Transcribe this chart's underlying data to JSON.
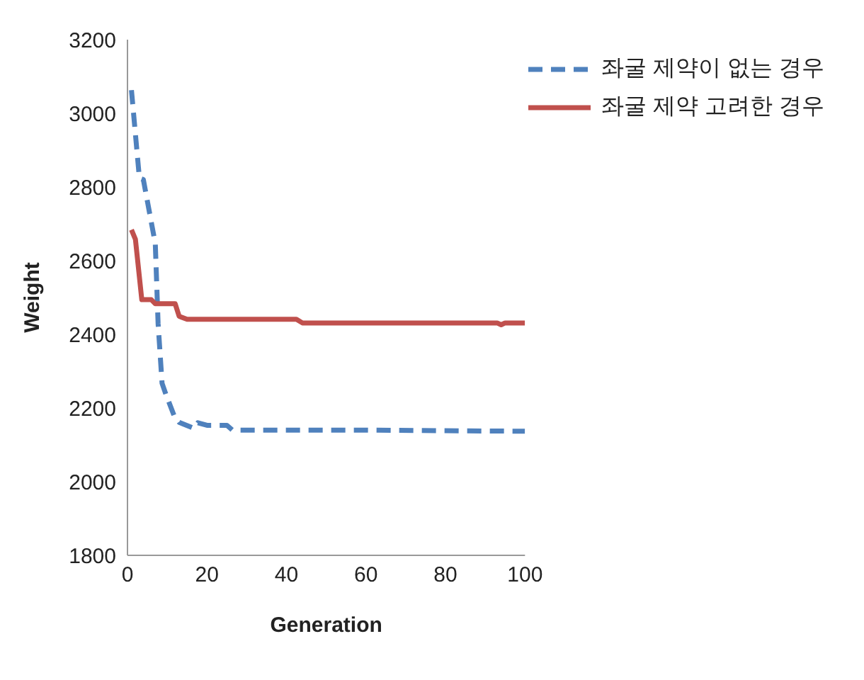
{
  "chart_data": {
    "type": "line",
    "xlabel": "Generation",
    "ylabel": "Weight",
    "xlim": [
      0,
      100
    ],
    "xticks": [
      0,
      20,
      40,
      60,
      80,
      100
    ],
    "ylim": [
      1800,
      3200
    ],
    "yticks": [
      1800,
      2000,
      2200,
      2400,
      2600,
      2800,
      3000,
      3200
    ],
    "grid": false,
    "legend": "top right",
    "marker": "none",
    "series": [
      {
        "name": "좌굴 제약이 없는 경우",
        "color": "#4f81bd",
        "line_style": "dashed",
        "x": [
          1,
          3,
          4,
          7,
          7.7,
          8.7,
          9.7,
          11.7,
          13,
          16.7,
          17.7,
          20,
          25,
          26.4,
          40,
          60,
          83.7,
          100
        ],
        "values": [
          3063,
          2824,
          2820,
          2646,
          2430,
          2267,
          2236,
          2180,
          2161,
          2145,
          2160,
          2153,
          2153,
          2140,
          2140,
          2140,
          2138,
          2137
        ]
      },
      {
        "name": "좌굴 제약 고려한 경우",
        "color": "#c0504d",
        "line_style": "solid",
        "x": [
          1,
          2,
          3.6,
          6,
          7,
          12,
          13,
          15,
          42.5,
          44,
          93,
          94,
          95,
          100
        ],
        "values": [
          2684,
          2658,
          2494,
          2494,
          2483,
          2483,
          2449,
          2441,
          2441,
          2431,
          2431,
          2426,
          2431,
          2431
        ]
      }
    ]
  }
}
